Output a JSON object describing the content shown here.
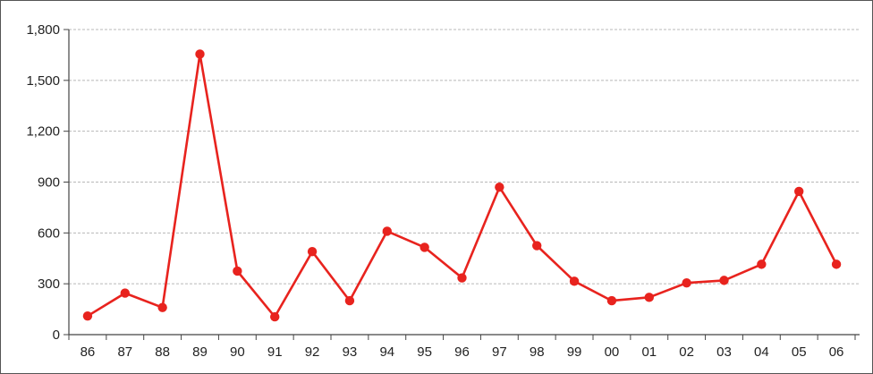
{
  "chart_data": {
    "type": "line",
    "title": "",
    "xlabel": "",
    "ylabel": "",
    "categories": [
      "86",
      "87",
      "88",
      "89",
      "90",
      "91",
      "92",
      "93",
      "94",
      "95",
      "96",
      "97",
      "98",
      "99",
      "00",
      "01",
      "02",
      "03",
      "04",
      "05",
      "06"
    ],
    "series": [
      {
        "values": [
          110,
          245,
          160,
          1655,
          375,
          105,
          490,
          200,
          610,
          515,
          335,
          870,
          525,
          315,
          200,
          220,
          305,
          320,
          415,
          845,
          415
        ],
        "color": "#e8231e"
      }
    ],
    "ylim": [
      0,
      1800
    ],
    "yticks": [
      0,
      300,
      600,
      900,
      1200,
      1500,
      1800
    ],
    "ytick_labels": [
      "0",
      "300",
      "600",
      "900",
      "1,200",
      "1,500",
      "1,800"
    ],
    "grid": true,
    "grid_style": "dashed horizontal",
    "legend": "none"
  }
}
